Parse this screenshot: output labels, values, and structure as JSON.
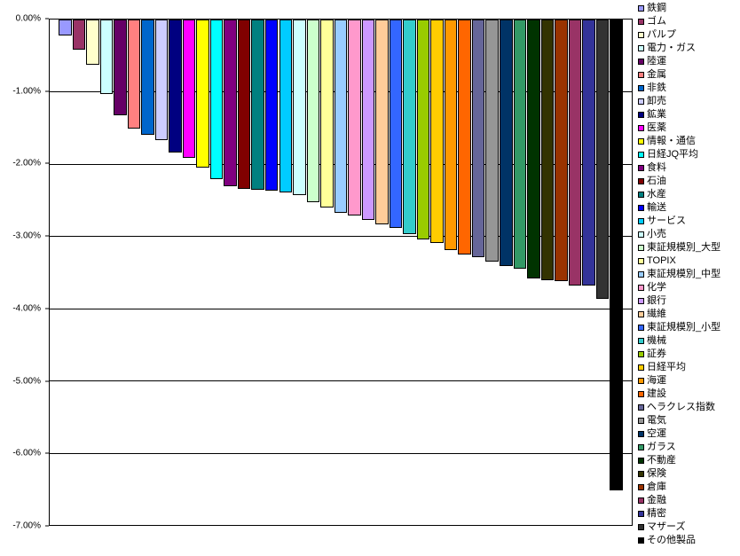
{
  "chart_data": {
    "type": "bar",
    "title": "",
    "xlabel": "",
    "ylabel": "",
    "ylim": [
      -7,
      0
    ],
    "grid": true,
    "legend_position": "right",
    "background_color": "#FFFFFF",
    "axis_color": "#000000",
    "bar_border_color": "#000000",
    "ytick_labels": [
      "0.00%",
      "-1.00%",
      "-2.00%",
      "-3.00%",
      "-4.00%",
      "-5.00%",
      "-6.00%",
      "-7.00%"
    ],
    "ytick_values": [
      0,
      -1,
      -2,
      -3,
      -4,
      -5,
      -6,
      -7
    ],
    "series": [
      {
        "name": "鉄鋼",
        "value": -0.22,
        "color": "#9999FF"
      },
      {
        "name": "ゴム",
        "value": -0.42,
        "color": "#993366"
      },
      {
        "name": "パルプ",
        "value": -0.63,
        "color": "#FFFFCC"
      },
      {
        "name": "電力・ガス",
        "value": -1.03,
        "color": "#CCFFFF"
      },
      {
        "name": "陸運",
        "value": -1.33,
        "color": "#660066"
      },
      {
        "name": "金属",
        "value": -1.51,
        "color": "#FF8080"
      },
      {
        "name": "非鉄",
        "value": -1.6,
        "color": "#0066CC"
      },
      {
        "name": "卸売",
        "value": -1.67,
        "color": "#CCCCFF"
      },
      {
        "name": "鉱業",
        "value": -1.84,
        "color": "#000080"
      },
      {
        "name": "医薬",
        "value": -1.91,
        "color": "#FF00FF"
      },
      {
        "name": "情報・通信",
        "value": -2.05,
        "color": "#FFFF00"
      },
      {
        "name": "日経JQ平均",
        "value": -2.21,
        "color": "#00FFFF"
      },
      {
        "name": "食料",
        "value": -2.31,
        "color": "#800080"
      },
      {
        "name": "石油",
        "value": -2.35,
        "color": "#800000"
      },
      {
        "name": "水産",
        "value": -2.36,
        "color": "#008080"
      },
      {
        "name": "輸送",
        "value": -2.37,
        "color": "#0000FF"
      },
      {
        "name": "サービス",
        "value": -2.39,
        "color": "#00CCFF"
      },
      {
        "name": "小売",
        "value": -2.43,
        "color": "#CCFFFF"
      },
      {
        "name": "東証規模別_大型",
        "value": -2.53,
        "color": "#CCFFCC"
      },
      {
        "name": "TOPIX",
        "value": -2.6,
        "color": "#FFFF99"
      },
      {
        "name": "東証規模別_中型",
        "value": -2.68,
        "color": "#99CCFF"
      },
      {
        "name": "化学",
        "value": -2.72,
        "color": "#FF99CC"
      },
      {
        "name": "銀行",
        "value": -2.77,
        "color": "#CC99FF"
      },
      {
        "name": "繊維",
        "value": -2.84,
        "color": "#FFCC99"
      },
      {
        "name": "東証規模別_小型",
        "value": -2.88,
        "color": "#3366FF"
      },
      {
        "name": "機械",
        "value": -2.97,
        "color": "#33CCCC"
      },
      {
        "name": "証券",
        "value": -3.04,
        "color": "#99CC00"
      },
      {
        "name": "日経平均",
        "value": -3.09,
        "color": "#FFCC00"
      },
      {
        "name": "海運",
        "value": -3.19,
        "color": "#FF9900"
      },
      {
        "name": "建設",
        "value": -3.25,
        "color": "#FF6600"
      },
      {
        "name": "ヘラクレス指数",
        "value": -3.29,
        "color": "#666699"
      },
      {
        "name": "電気",
        "value": -3.35,
        "color": "#969696"
      },
      {
        "name": "空運",
        "value": -3.42,
        "color": "#003366"
      },
      {
        "name": "ガラス",
        "value": -3.45,
        "color": "#339966"
      },
      {
        "name": "不動産",
        "value": -3.58,
        "color": "#003300"
      },
      {
        "name": "保険",
        "value": -3.61,
        "color": "#333300"
      },
      {
        "name": "倉庫",
        "value": -3.62,
        "color": "#993300"
      },
      {
        "name": "金融",
        "value": -3.68,
        "color": "#993366"
      },
      {
        "name": "精密",
        "value": -3.69,
        "color": "#333399"
      },
      {
        "name": "マザーズ",
        "value": -3.87,
        "color": "#333333"
      },
      {
        "name": "その他製品",
        "value": -6.52,
        "color": "#000000"
      }
    ]
  }
}
